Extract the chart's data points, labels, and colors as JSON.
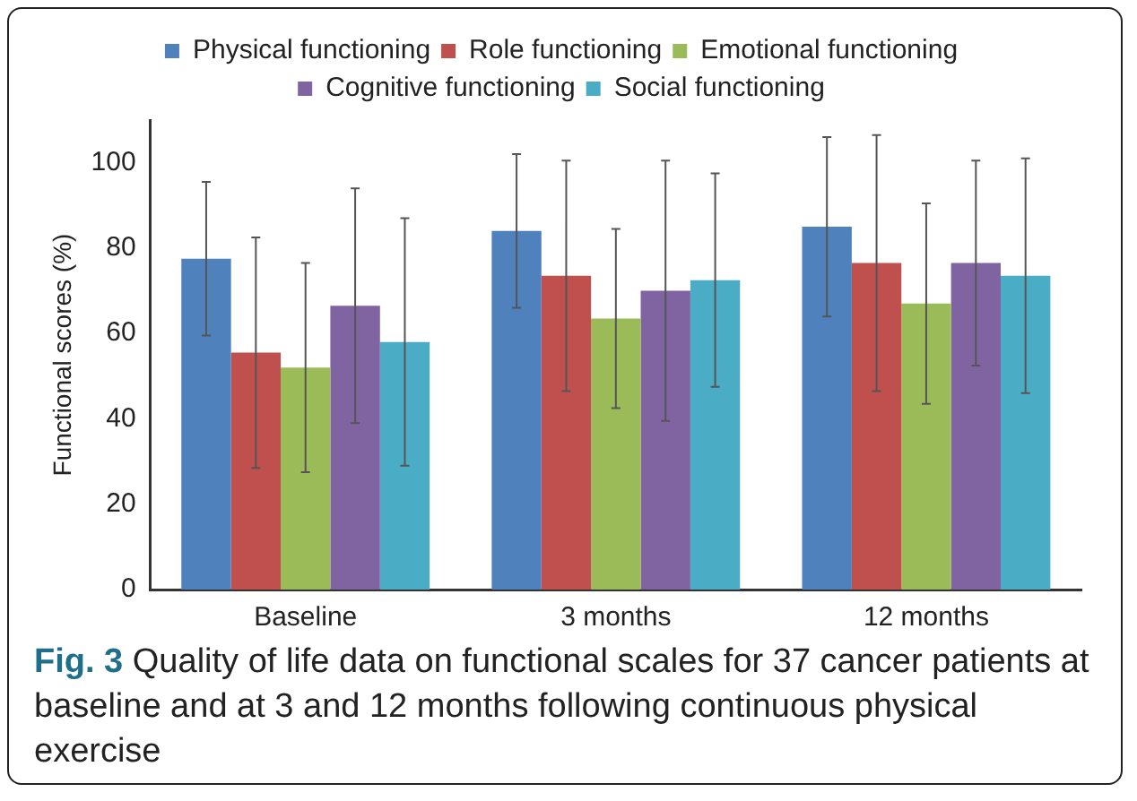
{
  "chart_data": {
    "type": "bar",
    "ylabel": "Functional scores (%)",
    "categories": [
      "Baseline",
      "3 months",
      "12 months"
    ],
    "series": [
      {
        "name": "Physical functioning",
        "color": "#4f81bd",
        "values": [
          77.5,
          84,
          85
        ],
        "errors": [
          18,
          18,
          21
        ]
      },
      {
        "name": "Role functioning",
        "color": "#c0504d",
        "values": [
          55.5,
          73.5,
          76.5
        ],
        "errors": [
          27,
          27,
          30
        ]
      },
      {
        "name": "Emotional functioning",
        "color": "#9bbb59",
        "values": [
          52,
          63.5,
          67
        ],
        "errors": [
          24.5,
          21,
          23.5
        ]
      },
      {
        "name": "Cognitive functioning",
        "color": "#8064a2",
        "values": [
          66.5,
          70,
          76.5
        ],
        "errors": [
          27.5,
          30.5,
          24
        ]
      },
      {
        "name": "Social functioning",
        "color": "#4bacc6",
        "values": [
          58,
          72.5,
          73.5
        ],
        "errors": [
          29,
          25,
          27.5
        ]
      }
    ],
    "ylim": [
      0,
      110
    ],
    "yticks": [
      0,
      20,
      40,
      60,
      80,
      100
    ],
    "grid": false,
    "legend": "top",
    "annotations": [
      "Fig. 3",
      "Quality of life data on functional scales for 37 cancer patients at baseline and at 3 and 12 months following continuous physical exercise"
    ]
  }
}
